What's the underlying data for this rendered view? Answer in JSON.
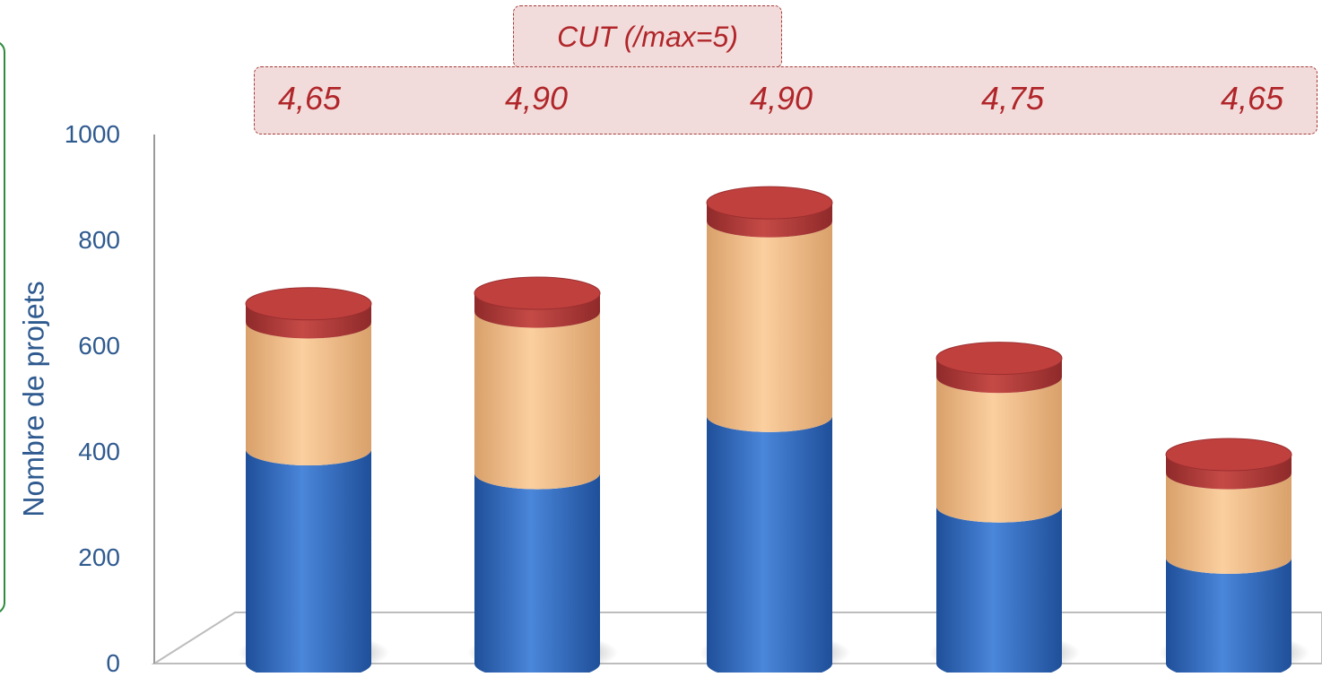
{
  "chart_data": {
    "type": "bar",
    "stacked": true,
    "style": "3d-cylinder",
    "categories": [
      "",
      "",
      "",
      "",
      ""
    ],
    "series": [
      {
        "values": [
          405,
          360,
          468,
          297,
          200
        ],
        "color": "#3b74c4"
      },
      {
        "values": [
          240,
          305,
          368,
          245,
          160
        ],
        "color": "#f9c18c"
      },
      {
        "values": [
          35,
          35,
          35,
          35,
          35
        ],
        "color": "#b23b3b"
      }
    ],
    "ylabel": "Nombre de projets",
    "ylim": [
      0,
      1000
    ],
    "yticks": [
      0,
      200,
      400,
      600,
      800,
      1000
    ],
    "grid": false,
    "annotation": {
      "title": "CUT (/max=5)",
      "values": [
        "4,65",
        "4,90",
        "4,90",
        "4,75",
        "4,65"
      ]
    }
  }
}
